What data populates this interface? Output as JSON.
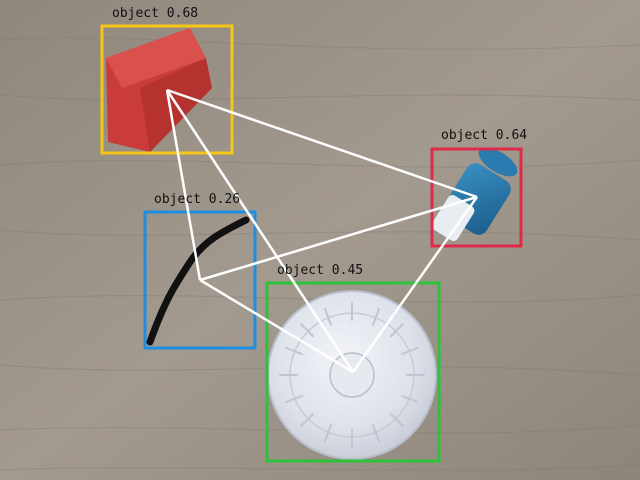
{
  "detections": [
    {
      "label": "object 0.68",
      "color": "#f5c518",
      "object": "red-cube"
    },
    {
      "label": "object 0.64",
      "color": "#e02a4a",
      "object": "blue-bottle"
    },
    {
      "label": "object 0.26",
      "color": "#1e8fe0",
      "object": "black-cable"
    },
    {
      "label": "object 0.45",
      "color": "#2ec23a",
      "object": "clear-plastic-lid"
    }
  ],
  "connection_color": "#ffffff"
}
